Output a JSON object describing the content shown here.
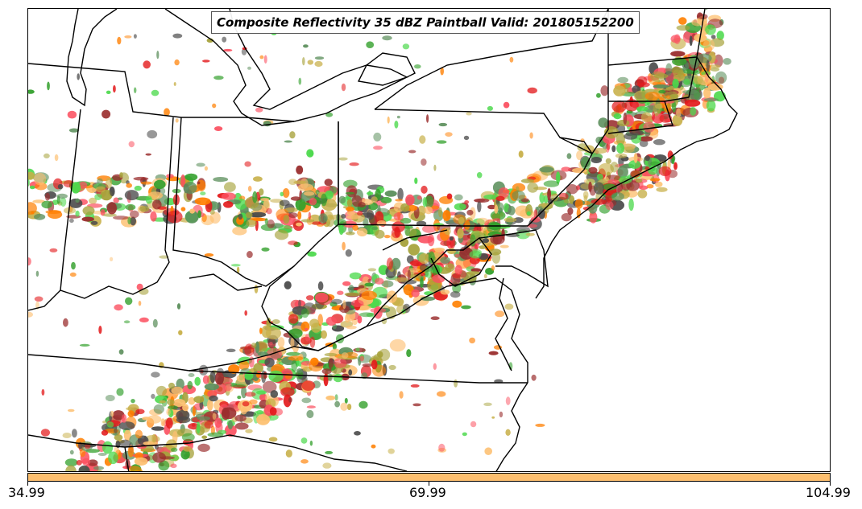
{
  "title": "Composite Reflectivity 35 dBZ Paintball Valid: 201805152200",
  "colors": {
    "members": [
      "#ff7f00",
      "#fdbf6f",
      "#e31a1c",
      "#fb4f5f",
      "#a6a23a",
      "#33a02c",
      "#4cd94c",
      "#4a4a4a",
      "#9a2d2d",
      "#5c8f5c",
      "#c8b04a"
    ],
    "colorbar": "#fdbf6f",
    "boundary": "#000000"
  },
  "colorbar": {
    "ticks": [
      "34.99",
      "69.99",
      "104.99"
    ]
  }
}
